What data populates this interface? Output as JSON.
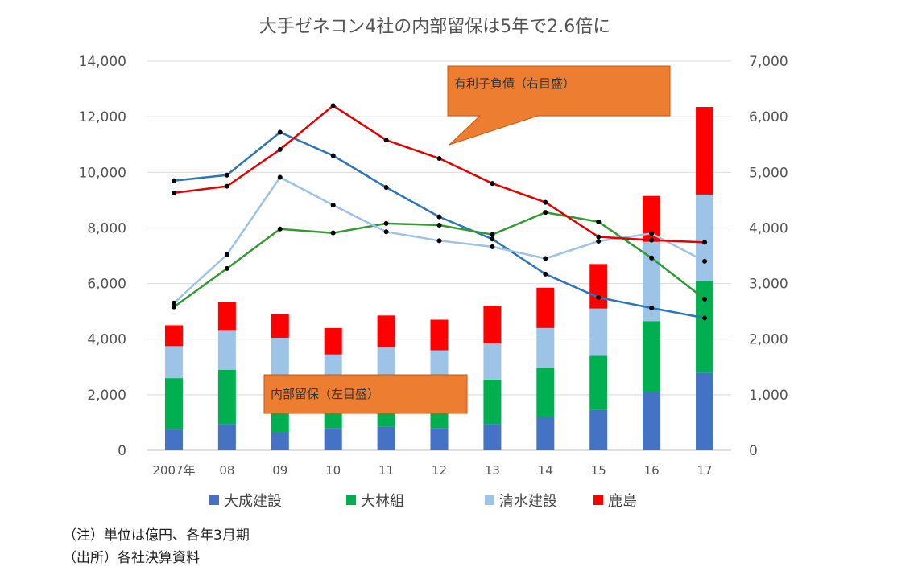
{
  "chart_data": {
    "type": "bar",
    "title": "大手ゼネコン4社の内部留保は5年で2.6倍に",
    "categories": [
      "2007年",
      "08",
      "09",
      "10",
      "11",
      "12",
      "13",
      "14",
      "15",
      "16",
      "17"
    ],
    "y_left": {
      "ylim": [
        0,
        14000
      ],
      "ticks": [
        "0",
        "2,000",
        "4,000",
        "6,000",
        "8,000",
        "10,000",
        "12,000",
        "14,000"
      ]
    },
    "y_right": {
      "ylim": [
        0,
        7000
      ],
      "ticks": [
        "0",
        "1,000",
        "2,000",
        "3,000",
        "4,000",
        "5,000",
        "6,000",
        "7,000"
      ]
    },
    "bar_series": [
      {
        "name": "大成建設",
        "color": "#4472C4",
        "values": [
          750,
          950,
          650,
          800,
          850,
          800,
          950,
          1200,
          1450,
          2100,
          2800
        ]
      },
      {
        "name": "大林組",
        "color": "#00B050",
        "values": [
          1850,
          1950,
          1750,
          1500,
          1800,
          1600,
          1600,
          1750,
          1950,
          2550,
          3300
        ]
      },
      {
        "name": "清水建設",
        "color": "#9DC3E6",
        "values": [
          1150,
          1400,
          1650,
          1150,
          1050,
          1200,
          1300,
          1450,
          1700,
          2850,
          3100
        ]
      },
      {
        "name": "鹿島",
        "color": "#FF0000",
        "values": [
          750,
          1050,
          850,
          950,
          1150,
          1100,
          1350,
          1450,
          1600,
          1650,
          3150
        ]
      }
    ],
    "line_series": [
      {
        "name": "大成建設",
        "color": "#2E75B6",
        "values": [
          4850,
          4950,
          5720,
          5300,
          4730,
          4200,
          3800,
          3170,
          2750,
          2560,
          2380
        ]
      },
      {
        "name": "大林組",
        "color": "#339933",
        "values": [
          2580,
          3270,
          3980,
          3910,
          4080,
          4050,
          3880,
          4280,
          4110,
          3460,
          2720
        ]
      },
      {
        "name": "清水建設",
        "color": "#9DC3E6",
        "values": [
          2650,
          3520,
          4910,
          4410,
          3930,
          3770,
          3660,
          3450,
          3760,
          3900,
          3400
        ]
      },
      {
        "name": "鹿島",
        "color": "#E00000",
        "values": [
          4630,
          4750,
          5410,
          6200,
          5580,
          5250,
          4800,
          4460,
          3840,
          3780,
          3740
        ]
      }
    ],
    "legend": [
      "大成建設",
      "大林組",
      "清水建設",
      "鹿島"
    ],
    "legend_position": "bottom",
    "callouts": {
      "lines": "有利子負債（右目盛）",
      "bars": "内部留保（左目盛）"
    },
    "grid": true
  },
  "notes": {
    "note1": "（注）単位は億円、各年3月期",
    "note2": "（出所）各社決算資料"
  }
}
